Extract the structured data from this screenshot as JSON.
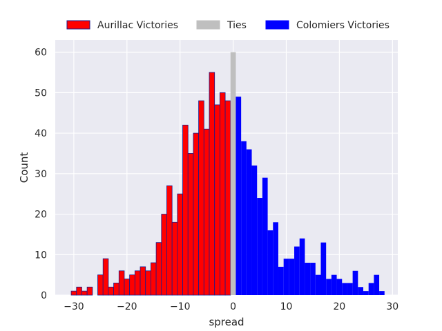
{
  "chart_data": {
    "type": "bar",
    "title": "",
    "xlabel": "spread",
    "ylabel": "Count",
    "xlim": [
      -33.5,
      31
    ],
    "ylim": [
      0,
      63
    ],
    "xticks": [
      -30,
      -20,
      -10,
      0,
      10,
      20,
      30
    ],
    "yticks": [
      0,
      10,
      20,
      30,
      40,
      50,
      60
    ],
    "grid": true,
    "legend_position": "top",
    "bin_width": 1,
    "colors": {
      "plot_bg": "#eaeaf2",
      "grid": "#ffffff",
      "aurillac": "#ff0000",
      "aurillac_edge": "#1a1a8c",
      "ties": "#bfbfbf",
      "colomiers": "#0000ff"
    },
    "series": [
      {
        "name": "Aurillac Victories",
        "x": [
          -30,
          -29,
          -28,
          -27,
          -25,
          -24,
          -23,
          -22,
          -21,
          -20,
          -19,
          -18,
          -17,
          -16,
          -15,
          -14,
          -13,
          -12,
          -11,
          -10,
          -9,
          -8,
          -7,
          -6,
          -5,
          -4,
          -3,
          -2,
          -1
        ],
        "values": [
          1,
          2,
          1,
          2,
          5,
          9,
          2,
          3,
          6,
          4,
          5,
          6,
          7,
          6,
          8,
          13,
          20,
          27,
          18,
          25,
          42,
          35,
          40,
          48,
          41,
          55,
          47,
          50,
          48
        ]
      },
      {
        "name": "Ties",
        "x": [
          0
        ],
        "values": [
          60
        ]
      },
      {
        "name": "Colomiers Victories",
        "x": [
          1,
          2,
          3,
          4,
          5,
          6,
          7,
          8,
          9,
          10,
          11,
          12,
          13,
          14,
          15,
          16,
          17,
          18,
          19,
          20,
          21,
          22,
          23,
          24,
          25,
          26,
          27,
          28
        ],
        "values": [
          49,
          38,
          36,
          32,
          24,
          29,
          16,
          18,
          7,
          9,
          9,
          12,
          14,
          8,
          8,
          5,
          13,
          4,
          5,
          4,
          3,
          3,
          6,
          2,
          1,
          3,
          5,
          1
        ]
      }
    ]
  }
}
